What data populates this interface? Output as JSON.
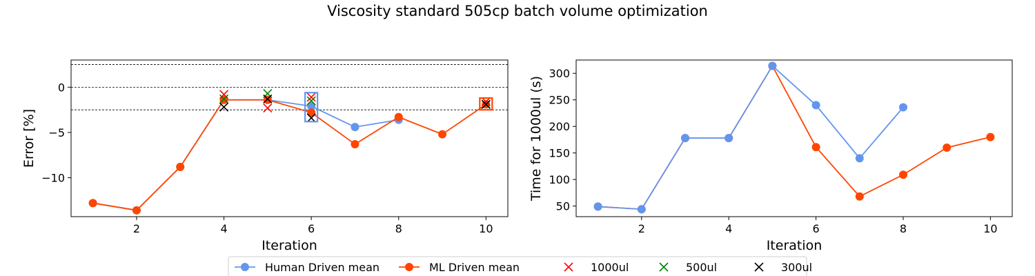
{
  "title": "Viscosity standard 505cp batch volume optimization",
  "colors": {
    "human": "#6495ED",
    "ml": "#FF4500",
    "v1000": "#FF0000",
    "v500": "#008000",
    "v300": "#000000"
  },
  "legend": {
    "placement": "bottom-center",
    "items": [
      {
        "label": "Human Driven mean",
        "marker": "circle-line",
        "color": "#6495ED"
      },
      {
        "label": "ML Driven mean",
        "marker": "circle-line",
        "color": "#FF4500"
      },
      {
        "label": "1000ul",
        "marker": "x",
        "color": "#FF0000"
      },
      {
        "label": "500ul",
        "marker": "x",
        "color": "#008000"
      },
      {
        "label": "300ul",
        "marker": "x",
        "color": "#000000"
      }
    ]
  },
  "chart_data": [
    {
      "type": "line",
      "xlabel": "Iteration",
      "ylabel": "Error [%]",
      "xlim": [
        0.5,
        10.5
      ],
      "ylim": [
        -14.3,
        3.0
      ],
      "xticks": [
        2,
        4,
        6,
        8,
        10
      ],
      "yticks": [
        0,
        -5,
        -10
      ],
      "ytick_labels": [
        "0",
        "−5",
        "−10"
      ],
      "grid": false,
      "reference_lines": [
        2.5,
        0,
        -2.5
      ],
      "series": [
        {
          "name": "Human Driven mean",
          "color": "#6495ED",
          "points": [
            [
              1,
              -12.8
            ],
            [
              2,
              -13.6
            ],
            [
              3,
              -8.8
            ],
            [
              4,
              -1.4
            ],
            [
              5,
              -1.4
            ],
            [
              6,
              -2.1
            ],
            [
              7,
              -4.4
            ],
            [
              8,
              -3.6
            ]
          ]
        },
        {
          "name": "ML Driven mean",
          "color": "#FF4500",
          "points": [
            [
              1,
              -12.8
            ],
            [
              2,
              -13.6
            ],
            [
              3,
              -8.8
            ],
            [
              4,
              -1.4
            ],
            [
              5,
              -1.4
            ],
            [
              6,
              -2.8
            ],
            [
              7,
              -6.3
            ],
            [
              8,
              -3.3
            ],
            [
              9,
              -5.2
            ],
            [
              10,
              -1.9
            ]
          ]
        }
      ],
      "volume_points": [
        {
          "volume": "1000ul",
          "color": "#FF0000",
          "points": [
            [
              4,
              -0.8
            ],
            [
              5,
              -2.3
            ],
            [
              6,
              -1.1
            ],
            [
              10,
              -1.6
            ]
          ]
        },
        {
          "volume": "500ul",
          "color": "#008000",
          "points": [
            [
              4,
              -1.3
            ],
            [
              5,
              -0.7
            ],
            [
              6,
              -1.5
            ],
            [
              10,
              -1.9
            ]
          ]
        },
        {
          "volume": "300ul",
          "color": "#000000",
          "points": [
            [
              4,
              -2.2
            ],
            [
              5,
              -1.3
            ],
            [
              6,
              -3.4
            ],
            [
              10,
              -1.9
            ]
          ]
        }
      ],
      "highlight_boxes": [
        {
          "x": 6,
          "y_range": [
            -3.8,
            -0.6
          ],
          "color": "#6495ED"
        },
        {
          "x": 10,
          "y_range": [
            -2.5,
            -1.2
          ],
          "color": "#FF4500"
        }
      ]
    },
    {
      "type": "line",
      "xlabel": "Iteration",
      "ylabel": "Time for 1000ul (s)",
      "xlim": [
        0.5,
        10.5
      ],
      "ylim": [
        30,
        325
      ],
      "xticks": [
        2,
        4,
        6,
        8,
        10
      ],
      "yticks": [
        50,
        100,
        150,
        200,
        250,
        300
      ],
      "grid": false,
      "series": [
        {
          "name": "ML Driven mean",
          "color": "#FF4500",
          "points": [
            [
              1,
              49
            ],
            [
              2,
              44
            ],
            [
              3,
              178
            ],
            [
              4,
              178
            ],
            [
              5,
              314
            ],
            [
              6,
              161
            ],
            [
              7,
              68
            ],
            [
              8,
              109
            ],
            [
              9,
              160
            ],
            [
              10,
              180
            ]
          ]
        },
        {
          "name": "Human Driven mean",
          "color": "#6495ED",
          "points": [
            [
              1,
              49
            ],
            [
              2,
              44
            ],
            [
              3,
              178
            ],
            [
              4,
              178
            ],
            [
              5,
              314
            ],
            [
              6,
              240
            ],
            [
              7,
              140
            ],
            [
              8,
              236
            ]
          ]
        }
      ]
    }
  ]
}
